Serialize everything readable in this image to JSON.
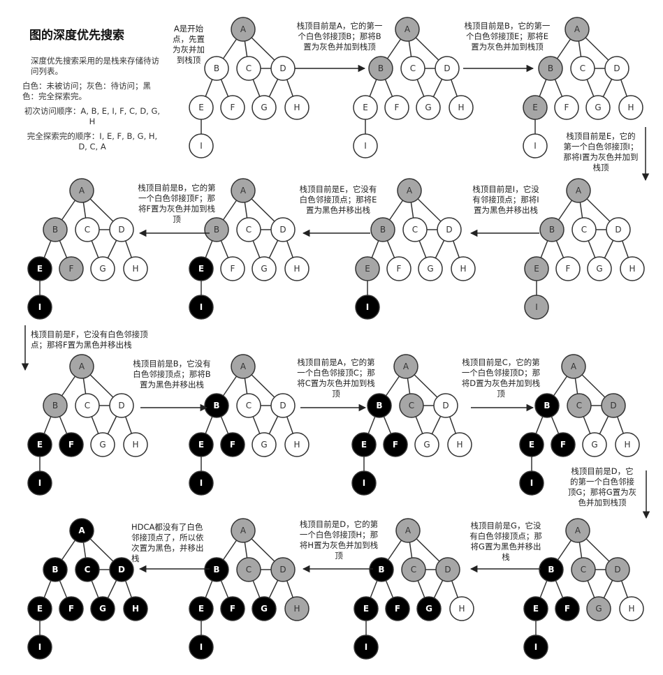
{
  "heading": {
    "title": "图的深度优先搜索",
    "intro": "深度优先搜索采用的是栈来存储待访问列表。",
    "legend": "白色：未被访问；灰色：待访问；黑色：完全探索完。",
    "visit_order": "初次访问顺序：A, B, E, I, F, C, D, G, H",
    "finish_order": "完全探索完的顺序：I, E, F, B, G, H, D, C, A"
  },
  "colors": {
    "white": "#ffffff",
    "gray": "#a6a6a6",
    "black": "#000000",
    "stroke": "#333333"
  },
  "graph": {
    "nodes": [
      "A",
      "B",
      "C",
      "D",
      "E",
      "F",
      "G",
      "H",
      "I"
    ],
    "edges": [
      [
        "A",
        "B"
      ],
      [
        "A",
        "C"
      ],
      [
        "A",
        "D"
      ],
      [
        "B",
        "E"
      ],
      [
        "B",
        "F"
      ],
      [
        "C",
        "D"
      ],
      [
        "C",
        "G"
      ],
      [
        "D",
        "G"
      ],
      [
        "D",
        "H"
      ],
      [
        "E",
        "I"
      ]
    ]
  },
  "steps": [
    {
      "state": "GWWWWWWWW",
      "note": "A是开始点，先置为灰并加到栈顶"
    },
    {
      "state": "GGWWWWWWW",
      "note": "栈顶目前是A，它的第一个白色邻接顶B；那将B置为灰色并加到栈顶"
    },
    {
      "state": "GGWWGWWWW",
      "note": "栈顶目前是B，它的第一个白色邻接顶E；那将E置为灰色并加到栈顶"
    },
    {
      "state": "GGWWGWWWG",
      "note": "栈顶目前是E，它的第一个白色邻接顶I；那将I置为灰色并加到栈顶"
    },
    {
      "state": "GGWWGWWWB",
      "note": "栈顶目前是I，它没有邻接顶点；那将I置为黑色并移出栈"
    },
    {
      "state": "GGWWBWWWB",
      "note": "栈顶目前是E，它没有白色邻接顶点；那将E置为黑色并移出栈"
    },
    {
      "state": "GGWWBGWWB",
      "note": "栈顶目前是B，它的第一个白色邻接顶F；那将F置为灰色并加到栈顶"
    },
    {
      "state": "GGWWBBWWB",
      "note": "栈顶目前是F，它没有白色邻接顶点；那将F置为黑色并移出栈"
    },
    {
      "state": "GBWWBBWWB",
      "note": "栈顶目前是B，它没有白色邻接顶点；那将B置为黑色并移出栈"
    },
    {
      "state": "GBGWBBWWB",
      "note": "栈顶目前是A，它的第一个白色邻接顶C；那将C置为灰色并加到栈顶"
    },
    {
      "state": "GBGGBBWWB",
      "note": "栈顶目前是C，它的第一个白色邻接顶D；那将D置为灰色并加到栈顶"
    },
    {
      "state": "GBGGBBGWB",
      "note": "栈顶目前是D，它的第一个白色邻接顶G；那将G置为灰色并加到栈顶"
    },
    {
      "state": "GBGGBBBWB",
      "note": "栈顶目前是G，它没有白色邻接顶点；那将G置为黑色并移出栈"
    },
    {
      "state": "GBGGBBBGB",
      "note": "栈顶目前是D，它的第一个白色邻接顶H；那将H置为灰色并加到栈顶"
    },
    {
      "state": "BBBBBBBBB",
      "note": "HDCA都没有了白色邻接顶点了，所以依次置为黑色，并移出栈"
    }
  ]
}
